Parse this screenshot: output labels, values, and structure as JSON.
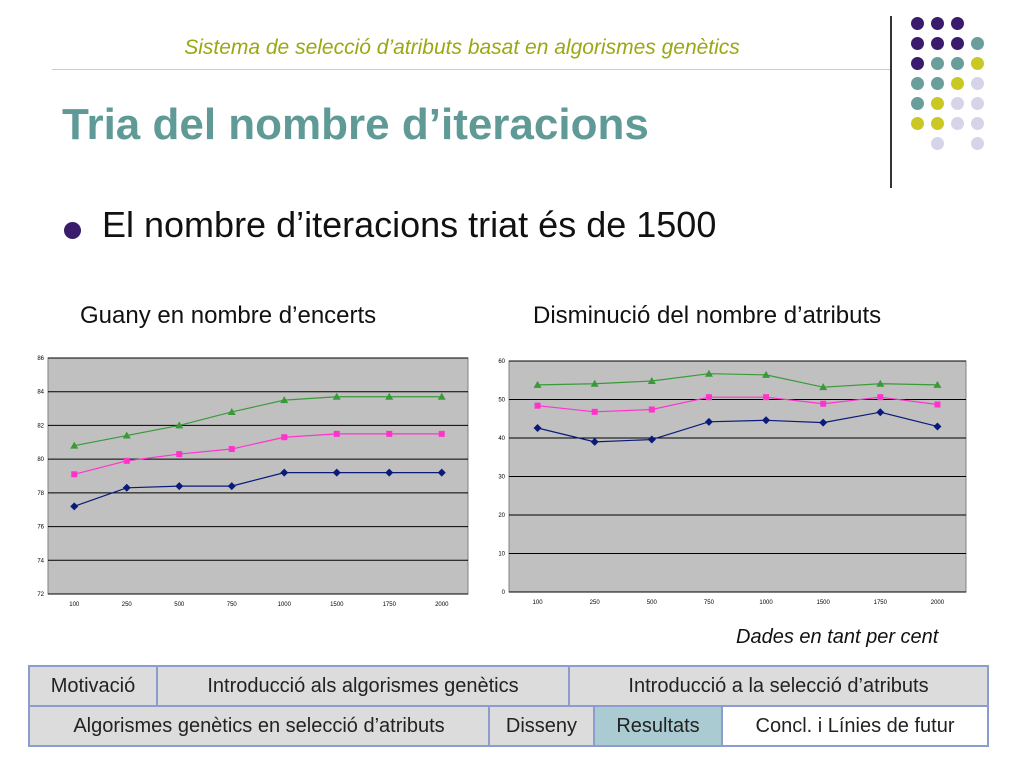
{
  "header": {
    "subtitle": "Sistema de selecció d’atributs basat en algorismes genètics",
    "title": "Tria del nombre d’iteracions"
  },
  "bullet": {
    "text": "El nombre d’iteracions triat és de 1500"
  },
  "colors": {
    "purple": "#3b1b6b",
    "teal": "#6a9e9b",
    "olive": "#c9c824",
    "lavender": "#d6d4e8"
  },
  "decoration": {
    "dot_grid": [
      [
        "purple",
        "purple",
        "purple",
        ""
      ],
      [
        "purple",
        "purple",
        "purple",
        "teal"
      ],
      [
        "purple",
        "teal",
        "teal",
        "olive"
      ],
      [
        "teal",
        "teal",
        "olive",
        "lavender"
      ],
      [
        "teal",
        "olive",
        "lavender",
        "lavender"
      ],
      [
        "olive",
        "olive",
        "lavender",
        "lavender"
      ],
      [
        "",
        "lavender",
        "",
        "lavender"
      ]
    ]
  },
  "chart_data": [
    {
      "type": "line",
      "title": "Guany en nombre d’encerts",
      "categories": [
        "100",
        "250",
        "500",
        "750",
        "1000",
        "1500",
        "1750",
        "2000"
      ],
      "ylim": [
        72,
        86
      ],
      "yticks": [
        72,
        74,
        76,
        78,
        80,
        82,
        84,
        86
      ],
      "grid": true,
      "series": [
        {
          "marker": "triangle",
          "color": "#3a9a3a",
          "values": [
            80.8,
            81.4,
            82.0,
            82.8,
            83.5,
            83.7,
            83.7,
            83.7
          ]
        },
        {
          "marker": "square",
          "color": "#ff33cc",
          "values": [
            79.1,
            79.9,
            80.3,
            80.6,
            81.3,
            81.5,
            81.5,
            81.5
          ]
        },
        {
          "marker": "diamond",
          "color": "#0a1a7a",
          "values": [
            77.2,
            78.3,
            78.4,
            78.4,
            79.2,
            79.2,
            79.2,
            79.2
          ]
        }
      ]
    },
    {
      "type": "line",
      "title": "Disminució del nombre d’atributs",
      "categories": [
        "100",
        "250",
        "500",
        "750",
        "1000",
        "1500",
        "1750",
        "2000"
      ],
      "ylim": [
        0,
        60
      ],
      "yticks": [
        0,
        10,
        20,
        30,
        40,
        50,
        60
      ],
      "grid": true,
      "series": [
        {
          "marker": "triangle",
          "color": "#3a9a3a",
          "values": [
            53.8,
            54.1,
            54.8,
            56.7,
            56.4,
            53.2,
            54.1,
            53.8
          ]
        },
        {
          "marker": "square",
          "color": "#ff33cc",
          "values": [
            48.4,
            46.8,
            47.4,
            50.6,
            50.6,
            48.9,
            50.6,
            48.7
          ]
        },
        {
          "marker": "diamond",
          "color": "#0a1a7a",
          "values": [
            42.6,
            39.0,
            39.6,
            44.2,
            44.6,
            44.0,
            46.7,
            43.0
          ]
        }
      ]
    }
  ],
  "note": "Dades en tant per cent",
  "nav": {
    "row1": [
      {
        "label": "Motivació",
        "state": "dim"
      },
      {
        "label": "Introducció als algorismes genètics",
        "state": "dim"
      },
      {
        "label": "Introducció a la selecció d’atributs",
        "state": "dim"
      }
    ],
    "row2": [
      {
        "label": "Algorismes genètics en selecció d’atributs",
        "state": "dim"
      },
      {
        "label": "Disseny",
        "state": "dim"
      },
      {
        "label": "Resultats",
        "state": "active"
      },
      {
        "label": "Concl. i Línies de futur",
        "state": "normal"
      }
    ]
  }
}
